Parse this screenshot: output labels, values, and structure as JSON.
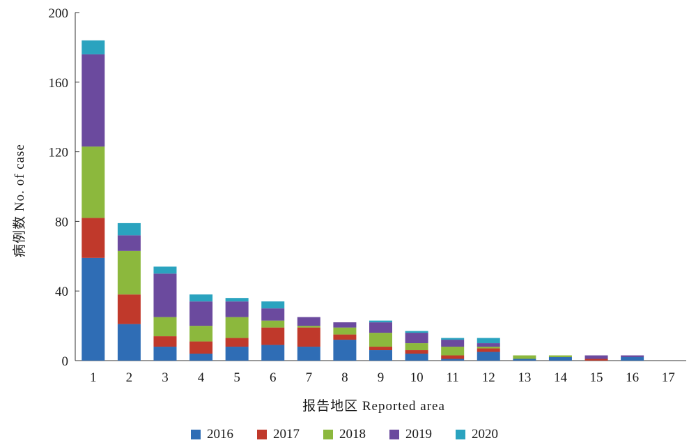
{
  "chart_data": {
    "type": "bar",
    "stacked": true,
    "categories": [
      "1",
      "2",
      "3",
      "4",
      "5",
      "6",
      "7",
      "8",
      "9",
      "10",
      "11",
      "12",
      "13",
      "14",
      "15",
      "16",
      "17"
    ],
    "ylabel": "病例数 No. of case",
    "xlabel": "报告地区 Reported area",
    "ylim": [
      0,
      200
    ],
    "yticks": [
      0,
      40,
      80,
      120,
      160,
      200
    ],
    "legend_position": "bottom",
    "grid": false,
    "series": [
      {
        "name": "2016",
        "color": "#2f6db5",
        "values": [
          59,
          21,
          8,
          4,
          8,
          9,
          8,
          12,
          6,
          4,
          1,
          5,
          1,
          2,
          0,
          2,
          0
        ]
      },
      {
        "name": "2017",
        "color": "#c0392b",
        "values": [
          23,
          17,
          6,
          7,
          5,
          10,
          11,
          3,
          2,
          2,
          2,
          2,
          0,
          0,
          1,
          0,
          0
        ]
      },
      {
        "name": "2018",
        "color": "#8cb83d",
        "values": [
          41,
          25,
          11,
          9,
          12,
          4,
          1,
          4,
          8,
          4,
          5,
          1,
          2,
          1,
          0,
          0,
          0
        ]
      },
      {
        "name": "2019",
        "color": "#6b4a9e",
        "values": [
          53,
          9,
          25,
          14,
          9,
          7,
          5,
          3,
          6,
          6,
          4,
          2,
          0,
          0,
          2,
          1,
          0
        ]
      },
      {
        "name": "2020",
        "color": "#2aa3bf",
        "values": [
          8,
          7,
          4,
          4,
          2,
          4,
          0,
          0,
          1,
          1,
          1,
          3,
          0,
          0,
          0,
          0,
          0
        ]
      }
    ]
  }
}
